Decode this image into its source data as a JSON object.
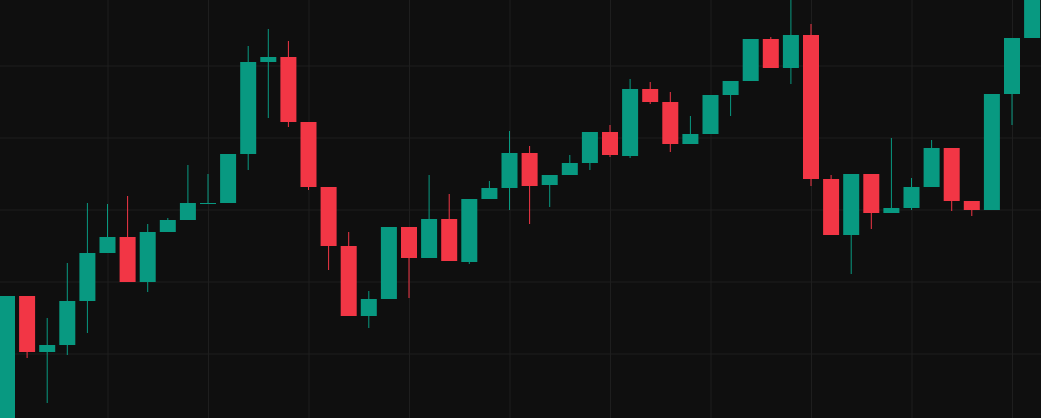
{
  "chart_data": {
    "type": "candlestick",
    "open": [
      0,
      122,
      66,
      73,
      117,
      165,
      181,
      136,
      186,
      198,
      214,
      215,
      264,
      356,
      361,
      296,
      231,
      172,
      102,
      119,
      191,
      160,
      199,
      156,
      219,
      230,
      265,
      233,
      243,
      255,
      286,
      262,
      329,
      316,
      274,
      284,
      323,
      337,
      379,
      350,
      383,
      239,
      183,
      244,
      205,
      210,
      231,
      270,
      217,
      208,
      324,
      380
    ],
    "high": [
      122,
      122,
      100,
      155,
      215,
      214,
      222,
      194,
      200,
      253,
      244,
      264,
      372,
      389,
      377,
      296,
      231,
      186,
      127,
      191,
      191,
      243,
      224,
      219,
      237,
      287,
      272,
      243,
      263,
      286,
      293,
      339,
      336,
      326,
      302,
      323,
      337,
      379,
      381,
      418,
      394,
      243,
      244,
      244,
      280,
      240,
      278,
      270,
      217,
      324,
      380,
      418
    ],
    "low": [
      0,
      60,
      15,
      63,
      85,
      165,
      136,
      126,
      186,
      198,
      214,
      215,
      248,
      300,
      291,
      228,
      148,
      102,
      90,
      119,
      120,
      160,
      157,
      154,
      219,
      208,
      194,
      211,
      243,
      248,
      261,
      260,
      314,
      266,
      274,
      284,
      302,
      337,
      350,
      334,
      232,
      183,
      144,
      189,
      205,
      208,
      231,
      207,
      202,
      208,
      293,
      380
    ],
    "close": [
      122,
      66,
      73,
      117,
      165,
      181,
      136,
      186,
      198,
      215,
      215,
      264,
      356,
      361,
      296,
      231,
      172,
      102,
      119,
      191,
      160,
      199,
      157,
      219,
      230,
      265,
      232,
      243,
      255,
      286,
      263,
      329,
      316,
      274,
      284,
      323,
      337,
      379,
      350,
      383,
      239,
      183,
      244,
      205,
      210,
      231,
      270,
      217,
      208,
      324,
      380,
      418
    ],
    "up_color": "#089981",
    "down_color": "#f23645",
    "ylim": [
      0,
      418
    ],
    "yticks": [
      64,
      136,
      208,
      280,
      352
    ],
    "grid": true
  }
}
